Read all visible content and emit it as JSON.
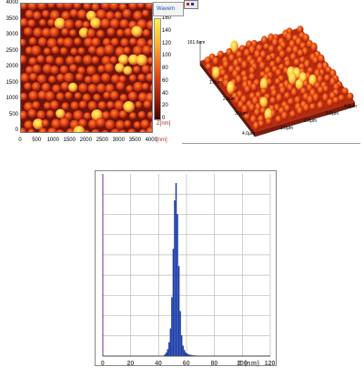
{
  "afm2d": {
    "y_ticks": [
      "4000",
      "3500",
      "3000",
      "2500",
      "2000",
      "1500",
      "1000",
      "500",
      "0"
    ],
    "x_ticks": [
      "0",
      "500",
      "1000",
      "1500",
      "2000",
      "2500",
      "3000",
      "3500",
      "4000"
    ],
    "x_unit": "[nm]",
    "colorbar_ticks": [
      "160",
      "140",
      "120",
      "100",
      "80",
      "60",
      "40",
      "20",
      "0"
    ],
    "colorbar_label": "Z[nm]",
    "menu_label": "Wavem",
    "colors": {
      "low": "#6a1208",
      "mid": "#d83a12",
      "high": "#fff24a",
      "frame": "#8a8a8a"
    }
  },
  "afm3d": {
    "z_label": "161.6nm",
    "axis_labels": [
      "1.0µm",
      "2.0µm",
      "3.0µm",
      "4.0µm",
      "1.0µm",
      "2.0µm",
      "3.0µm",
      "4.0µm"
    ]
  },
  "histogram": {
    "header_mark": "",
    "x_ticks": [
      "0",
      "20",
      "40",
      "60",
      "80",
      "100",
      "120"
    ],
    "x_label": "Z (nm)",
    "bar_color": "#1f3fa8"
  },
  "chart_data": {
    "type": "bar",
    "title": "",
    "xlabel": "Z (nm)",
    "ylabel": "",
    "xlim": [
      0,
      120
    ],
    "grid": true,
    "x": [
      44,
      45,
      46,
      47,
      48,
      49,
      50,
      51,
      52,
      53,
      54,
      55,
      56,
      57,
      58,
      59,
      60,
      61,
      62,
      63,
      64,
      65,
      66,
      68,
      70,
      72
    ],
    "values": [
      0.01,
      0.02,
      0.04,
      0.08,
      0.16,
      0.34,
      0.62,
      0.9,
      1.0,
      0.82,
      0.52,
      0.26,
      0.12,
      0.06,
      0.035,
      0.02,
      0.014,
      0.01,
      0.008,
      0.006,
      0.005,
      0.004,
      0.003,
      0.002,
      0.002,
      0.001
    ]
  }
}
